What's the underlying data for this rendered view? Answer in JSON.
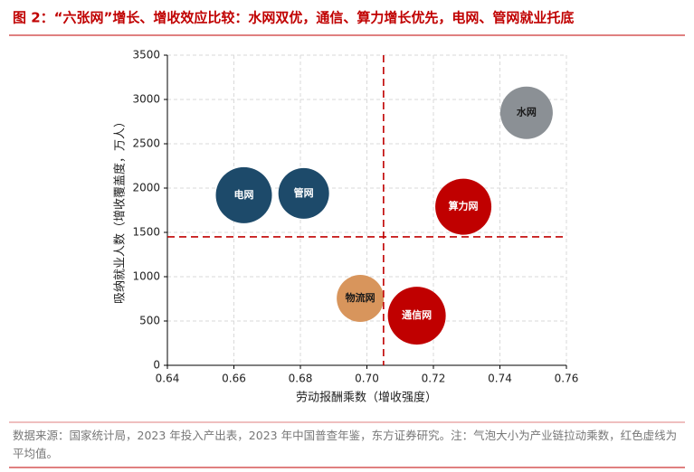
{
  "chart_data": {
    "type": "scatter",
    "title": "图 2：“六张网”增长、增收效应比较：水网双优，通信、算力增长优先，电网、管网就业托底",
    "x_label": "劳动报酬乘数（增收强度）",
    "y_label": "吸纳就业人数（增收覆盖度，万人）",
    "note": "数据来源：国家统计局，2023 年投入产出表，2023 年中国普查年鉴，东方证券研究。注：气泡大小为产业链拉动乘数，红色虚线为平均值。",
    "xlim": [
      0.64,
      0.76
    ],
    "xticks": [
      0.64,
      0.66,
      0.68,
      {
        "value": 0.7,
        "label": "0.70"
      },
      0.72,
      0.74,
      0.76
    ],
    "ylim": [
      0,
      3500
    ],
    "yticks": [
      0,
      500,
      1000,
      1500,
      2000,
      2500,
      3000,
      3500
    ],
    "grid": true,
    "mean_x": 0.705,
    "mean_y": 1450,
    "mean_color": "#c00000",
    "points": [
      {
        "name": "水网",
        "x": 0.748,
        "y": 2850,
        "size": 2.9,
        "color": "#8b9095",
        "label_color": "#1a1a1a"
      },
      {
        "name": "电网",
        "x": 0.663,
        "y": 1920,
        "size": 3.1,
        "color": "#1d4a6a",
        "label_color": "#ffffff"
      },
      {
        "name": "管网",
        "x": 0.681,
        "y": 1940,
        "size": 2.8,
        "color": "#1d4a6a",
        "label_color": "#ffffff"
      },
      {
        "name": "算力网",
        "x": 0.729,
        "y": 1790,
        "size": 3.1,
        "color": "#c00000",
        "label_color": "#ffffff"
      },
      {
        "name": "物流网",
        "x": 0.698,
        "y": 755,
        "size": 2.6,
        "color": "#d8955c",
        "label_color": "#1a1a1a"
      },
      {
        "name": "通信网",
        "x": 0.715,
        "y": 560,
        "size": 3.2,
        "color": "#c00000",
        "label_color": "#ffffff"
      }
    ]
  }
}
